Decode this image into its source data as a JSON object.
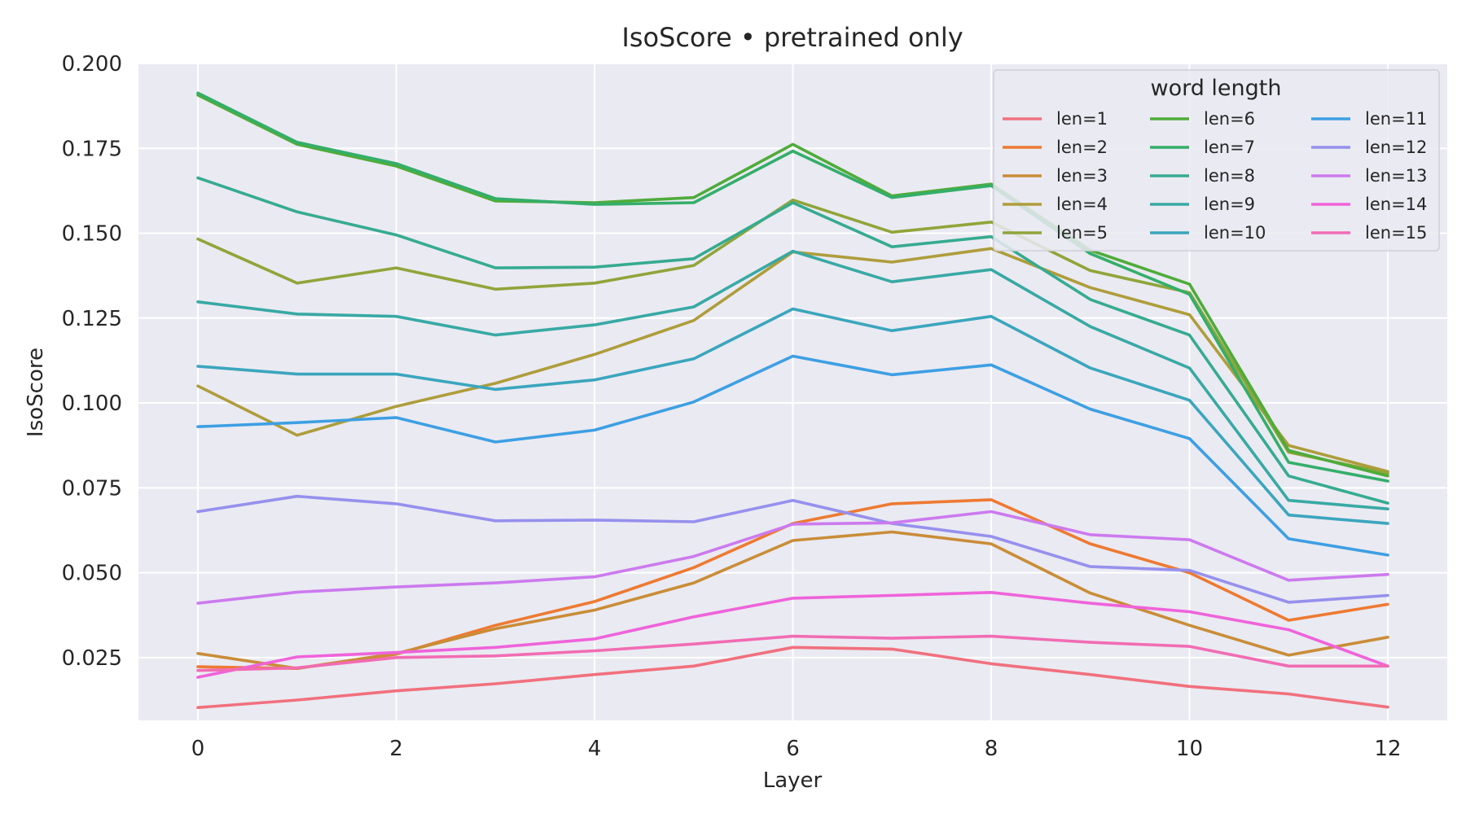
{
  "chart_data": {
    "type": "line",
    "title": "IsoScore • pretrained only",
    "xlabel": "Layer",
    "ylabel": "IsoScore",
    "x": [
      0,
      1,
      2,
      3,
      4,
      5,
      6,
      7,
      8,
      9,
      10,
      11,
      12
    ],
    "xlim": [
      -0.6,
      12.6
    ],
    "ylim": [
      0.0065,
      0.2
    ],
    "xticks": [
      "0",
      "2",
      "4",
      "6",
      "8",
      "10",
      "12"
    ],
    "xtick_values": [
      0,
      2,
      4,
      6,
      8,
      10,
      12
    ],
    "yticks": [
      "0.025",
      "0.050",
      "0.075",
      "0.100",
      "0.125",
      "0.150",
      "0.175",
      "0.200"
    ],
    "ytick_values": [
      0.025,
      0.05,
      0.075,
      0.1,
      0.125,
      0.15,
      0.175,
      0.2
    ],
    "grid": true,
    "background": "#eaeaf2",
    "legend": {
      "title": "word length",
      "position": "top-right",
      "columns": 3
    },
    "series": [
      {
        "name": "len=1",
        "color": "#f1707d",
        "values": [
          0.0103,
          0.0125,
          0.0152,
          0.0173,
          0.02,
          0.0225,
          0.028,
          0.0275,
          0.0232,
          0.02,
          0.0165,
          0.0143,
          0.0104
        ]
      },
      {
        "name": "len=2",
        "color": "#ed7a32",
        "values": [
          0.0223,
          0.0218,
          0.026,
          0.0345,
          0.0415,
          0.0515,
          0.0645,
          0.0703,
          0.0715,
          0.0585,
          0.05,
          0.036,
          0.0407
        ]
      },
      {
        "name": "len=3",
        "color": "#c98d38",
        "values": [
          0.0262,
          0.0218,
          0.0262,
          0.0335,
          0.039,
          0.047,
          0.0595,
          0.062,
          0.0585,
          0.044,
          0.0345,
          0.0257,
          0.031
        ]
      },
      {
        "name": "len=4",
        "color": "#ae9d3b",
        "values": [
          0.105,
          0.0905,
          0.099,
          0.1058,
          0.1143,
          0.1243,
          0.1445,
          0.1415,
          0.1455,
          0.134,
          0.126,
          0.0875,
          0.0798
        ]
      },
      {
        "name": "len=5",
        "color": "#8fa53a",
        "values": [
          0.1483,
          0.1353,
          0.1398,
          0.1335,
          0.1353,
          0.1405,
          0.1598,
          0.1503,
          0.1533,
          0.139,
          0.1325,
          0.0855,
          0.0793
        ]
      },
      {
        "name": "len=6",
        "color": "#4fac3a",
        "values": [
          0.1907,
          0.1762,
          0.1698,
          0.1595,
          0.159,
          0.1605,
          0.1762,
          0.161,
          0.1645,
          0.145,
          0.135,
          0.086,
          0.0785
        ]
      },
      {
        "name": "len=7",
        "color": "#34ae6a",
        "values": [
          0.1913,
          0.1768,
          0.1705,
          0.1602,
          0.1585,
          0.159,
          0.1742,
          0.1605,
          0.164,
          0.144,
          0.132,
          0.0825,
          0.077
        ]
      },
      {
        "name": "len=8",
        "color": "#36ab91",
        "values": [
          0.1663,
          0.1563,
          0.1495,
          0.1398,
          0.14,
          0.1425,
          0.159,
          0.146,
          0.149,
          0.1305,
          0.12,
          0.0785,
          0.0705
        ]
      },
      {
        "name": "len=9",
        "color": "#38a9a4",
        "values": [
          0.1298,
          0.1262,
          0.1255,
          0.12,
          0.123,
          0.1283,
          0.1447,
          0.1357,
          0.1393,
          0.1225,
          0.1103,
          0.0713,
          0.0688
        ]
      },
      {
        "name": "len=10",
        "color": "#3aa6bd",
        "values": [
          0.1108,
          0.1085,
          0.1085,
          0.104,
          0.1068,
          0.113,
          0.1277,
          0.1213,
          0.1255,
          0.1103,
          0.1008,
          0.067,
          0.0645
        ]
      },
      {
        "name": "len=11",
        "color": "#3d9fe3",
        "values": [
          0.093,
          0.0942,
          0.0957,
          0.0885,
          0.092,
          0.1003,
          0.1138,
          0.1083,
          0.1112,
          0.0982,
          0.0895,
          0.06,
          0.0552
        ]
      },
      {
        "name": "len=12",
        "color": "#9690ed",
        "values": [
          0.068,
          0.0725,
          0.0703,
          0.0653,
          0.0655,
          0.065,
          0.0713,
          0.0645,
          0.0607,
          0.0518,
          0.0507,
          0.0413,
          0.0433
        ]
      },
      {
        "name": "len=13",
        "color": "#cc7aee",
        "values": [
          0.041,
          0.0443,
          0.0458,
          0.047,
          0.0488,
          0.0548,
          0.0643,
          0.0647,
          0.068,
          0.0612,
          0.0597,
          0.0478,
          0.0495
        ]
      },
      {
        "name": "len=14",
        "color": "#ef63da",
        "values": [
          0.0192,
          0.0252,
          0.0265,
          0.028,
          0.0305,
          0.037,
          0.0425,
          0.0433,
          0.0442,
          0.041,
          0.0385,
          0.0332,
          0.0225
        ]
      },
      {
        "name": "len=15",
        "color": "#f16cb3",
        "values": [
          0.0212,
          0.022,
          0.025,
          0.0255,
          0.027,
          0.029,
          0.0313,
          0.0307,
          0.0313,
          0.0295,
          0.0283,
          0.0225,
          0.0225
        ]
      }
    ]
  }
}
